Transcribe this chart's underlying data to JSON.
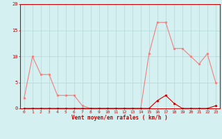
{
  "x": [
    0,
    1,
    2,
    3,
    4,
    5,
    6,
    7,
    8,
    9,
    10,
    11,
    12,
    13,
    14,
    15,
    16,
    17,
    18,
    19,
    20,
    21,
    22,
    23
  ],
  "rafales": [
    2,
    10,
    6.5,
    6.5,
    2.5,
    2.5,
    2.5,
    0.5,
    0,
    0,
    0,
    0,
    0,
    0,
    0,
    10.5,
    16.5,
    16.5,
    11.5,
    11.5,
    10,
    8.5,
    10.5,
    5
  ],
  "moyen": [
    0,
    0,
    0,
    0,
    0,
    0,
    0,
    0,
    0,
    0,
    0,
    0,
    0,
    0,
    0,
    0,
    1.5,
    2.5,
    1,
    0,
    0,
    0,
    0,
    0.5
  ],
  "line_color_rafales": "#f08080",
  "line_color_moyen": "#cc0000",
  "bg_color": "#d4f0f0",
  "grid_color": "#b0d8d8",
  "xlabel": "Vent moyen/en rafales ( km/h )",
  "xlabel_color": "#cc0000",
  "tick_color": "#cc0000",
  "ylim": [
    0,
    20
  ],
  "yticks": [
    0,
    5,
    10,
    15,
    20
  ],
  "spine_color": "#cc0000",
  "fig_width": 3.2,
  "fig_height": 2.0,
  "dpi": 100
}
